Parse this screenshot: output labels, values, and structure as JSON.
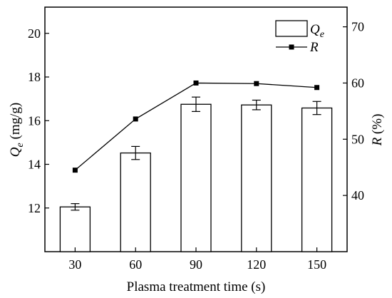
{
  "chart_data": {
    "type": "bar",
    "categories": [
      "30",
      "60",
      "90",
      "120",
      "150"
    ],
    "xlabel": "Plasma treatment time (s)",
    "ylabel": {
      "main": "Q",
      "sub": "e",
      "unit": " (mg/g)"
    },
    "y2label": {
      "main": "R",
      "unit": " (%)"
    },
    "ylim": [
      10,
      21.2
    ],
    "y2lim": [
      30,
      73.5
    ],
    "yticks": [
      12,
      14,
      16,
      18,
      20
    ],
    "y2ticks": [
      40,
      50,
      60,
      70
    ],
    "legend": {
      "placement": "top-right",
      "bar": {
        "main": "Q",
        "sub": "e"
      },
      "line": "R"
    },
    "series": [
      {
        "kind": "bar",
        "axis": "left",
        "values": [
          12.05,
          14.52,
          16.75,
          16.72,
          16.58
        ],
        "errors": [
          0.15,
          0.3,
          0.33,
          0.22,
          0.3
        ]
      },
      {
        "kind": "line",
        "axis": "right",
        "marker": "square",
        "values": [
          44.5,
          53.6,
          60.0,
          59.9,
          59.2
        ]
      }
    ],
    "colors": {
      "bar_fill": "#ffffff",
      "stroke": "#000000"
    }
  }
}
